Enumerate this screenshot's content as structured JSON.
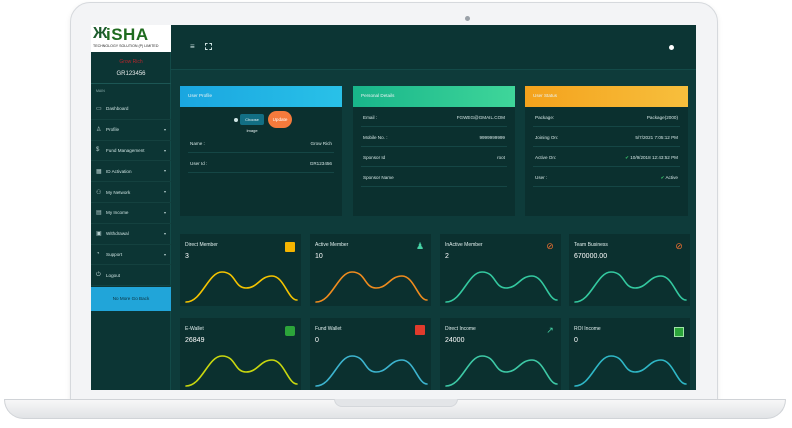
{
  "brand": {
    "logo_text": "iSHA",
    "logo_mark": "Ж",
    "logo_sub": "TECHNOLOGY SOLUTION (P) LIMITED"
  },
  "sidebar": {
    "user_name": "Grow Rich",
    "user_id": "GR123456",
    "section_label": "MAIN",
    "items": [
      {
        "label": "Dashboard",
        "icon": "monitor-icon",
        "glyph": "▭",
        "has_arrow": false
      },
      {
        "label": "Profile",
        "icon": "user-icon",
        "glyph": "♙",
        "has_arrow": true
      },
      {
        "label": "Fund Management",
        "icon": "dollar-icon",
        "glyph": "$",
        "has_arrow": true
      },
      {
        "label": "ID Activation",
        "icon": "calendar-icon",
        "glyph": "▦",
        "has_arrow": true
      },
      {
        "label": "My Network",
        "icon": "network-icon",
        "glyph": "⚇",
        "has_arrow": true
      },
      {
        "label": "My Income",
        "icon": "briefcase-icon",
        "glyph": "▤",
        "has_arrow": true
      },
      {
        "label": "Withdrawal",
        "icon": "wallet-icon",
        "glyph": "▣",
        "has_arrow": true
      },
      {
        "label": "Support",
        "icon": "support-icon",
        "glyph": "◔",
        "has_arrow": true
      },
      {
        "label": "Logout",
        "icon": "power-icon",
        "glyph": "⏻",
        "has_arrow": false
      }
    ],
    "arrow_glyph": "▾",
    "go_back": "No More Go Back"
  },
  "topbar": {
    "menu_glyph": "≡"
  },
  "profile_card": {
    "title": "User Profile",
    "choose_image": "Choose Image",
    "update": "Update",
    "rows": [
      {
        "key": "Name :",
        "value": "Grow Rich"
      },
      {
        "key": "User Id :",
        "value": "GR123456"
      }
    ]
  },
  "personal_card": {
    "title": "Personal Details",
    "rows": [
      {
        "key": "Email :",
        "value": "FGWEG@GMAIL.COM"
      },
      {
        "key": "Mobile No. :",
        "value": "9999999999"
      },
      {
        "key": "Sponsor Id",
        "value": "root"
      },
      {
        "key": "Sponsor Name",
        "value": ""
      }
    ]
  },
  "status_card": {
    "title": "User Status",
    "rows": [
      {
        "key": "Package:",
        "value": "Package(2000)"
      },
      {
        "key": "Joining On:",
        "value": "5/7/2021 7:05:12 PM"
      },
      {
        "key": "Active On:",
        "value": "✔ 10/9/2018 12:43:52 PM"
      },
      {
        "key": "User :",
        "value": "✔ Active"
      }
    ],
    "check_color": "#3ecb6f"
  },
  "stats": [
    {
      "title": "Direct Member",
      "value": "3",
      "icon": "id-card-icon",
      "color": "#f5c400"
    },
    {
      "title": "Active Member",
      "value": "10",
      "icon": "user-icon",
      "color": "#f08c1e"
    },
    {
      "title": "InActive Member",
      "value": "2",
      "icon": "user-slash-icon",
      "color": "#34c9a0"
    },
    {
      "title": "Team Business",
      "value": "670000.00",
      "icon": "user-slash-icon",
      "color": "#34c9a0"
    },
    {
      "title": "E-Wallet",
      "value": "26849",
      "icon": "wallet-icon",
      "color": "#c9d80f"
    },
    {
      "title": "Fund Wallet",
      "value": "0",
      "icon": "gift-icon",
      "color": "#3db4cf"
    },
    {
      "title": "Direct Income",
      "value": "24000",
      "icon": "chart-icon",
      "color": "#3ec9a6"
    },
    {
      "title": "ROI Income",
      "value": "0",
      "icon": "money-icon",
      "color": "#2fb7c6"
    }
  ]
}
